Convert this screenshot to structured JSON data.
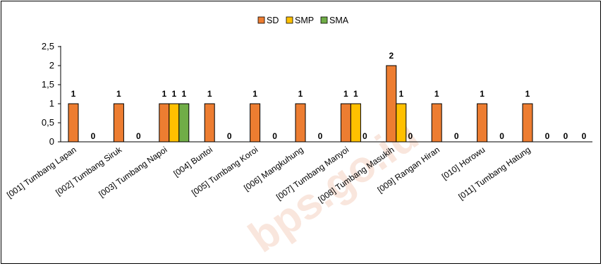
{
  "watermark": "bps.go.id",
  "chart_data": {
    "type": "bar",
    "categories": [
      "[001] Tumbang Lapan",
      "[002] Tumbang Siruk",
      "[003] Tumbang Napoi",
      "[004] Buntoi",
      "[005] Tumbang Koroi",
      "[006] Mangkuhung",
      "[007] Tumbang Manyoi",
      "[008] Tumbang Masukih",
      "[009] Rangan Hiran",
      "[010] Horowu",
      "[011] Tumbang Hatung"
    ],
    "series": [
      {
        "name": "SD",
        "color": "#ED7D31",
        "values": [
          1,
          1,
          1,
          1,
          1,
          1,
          1,
          2,
          1,
          1,
          1
        ]
      },
      {
        "name": "SMP",
        "color": "#FFC000",
        "values": [
          0,
          0,
          1,
          0,
          0,
          0,
          1,
          1,
          0,
          0,
          0
        ]
      },
      {
        "name": "SMA",
        "color": "#70AD47",
        "values": [
          0,
          0,
          1,
          0,
          0,
          0,
          0,
          0,
          0,
          0,
          0
        ]
      }
    ],
    "yticks": [
      "0",
      "0,5",
      "1",
      "1,5",
      "2",
      "2,5"
    ],
    "ylim": [
      0,
      2.5
    ],
    "legend_position": "top-center",
    "grid": false
  }
}
